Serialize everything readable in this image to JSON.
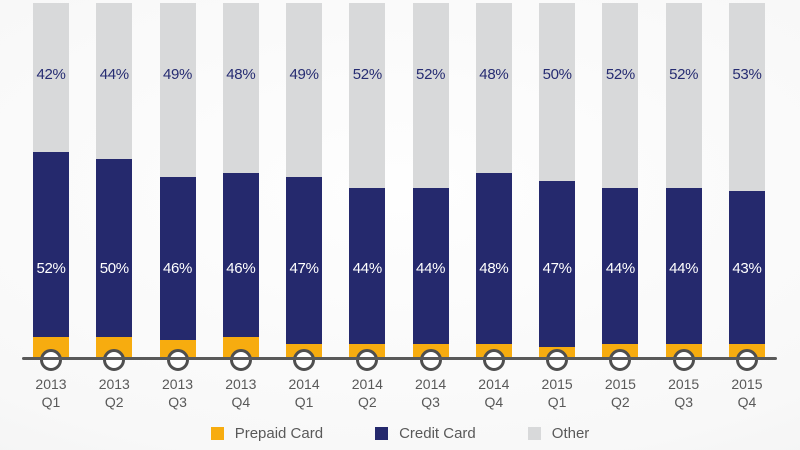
{
  "chart_data": {
    "type": "bar",
    "stacked": true,
    "orientation": "vertical",
    "unit": "%",
    "ylim": [
      0,
      100
    ],
    "grid": false,
    "legend_position": "bottom",
    "title": "",
    "categories": [
      "2013 Q1",
      "2013 Q2",
      "2013 Q3",
      "2013 Q4",
      "2014 Q1",
      "2014 Q2",
      "2014 Q3",
      "2014 Q4",
      "2015 Q1",
      "2015 Q2",
      "2015 Q3",
      "2015 Q4"
    ],
    "category_lines": [
      [
        "2013",
        "Q1"
      ],
      [
        "2013",
        "Q2"
      ],
      [
        "2013",
        "Q3"
      ],
      [
        "2013",
        "Q4"
      ],
      [
        "2014",
        "Q1"
      ],
      [
        "2014",
        "Q2"
      ],
      [
        "2014",
        "Q3"
      ],
      [
        "2014",
        "Q4"
      ],
      [
        "2015",
        "Q1"
      ],
      [
        "2015",
        "Q2"
      ],
      [
        "2015",
        "Q3"
      ],
      [
        "2015",
        "Q4"
      ]
    ],
    "series": [
      {
        "key": "prepaid",
        "name": "Prepaid Card",
        "color": "#F7AC0F",
        "values": [
          6,
          6,
          5,
          6,
          4,
          4,
          4,
          4,
          3,
          4,
          4,
          4
        ],
        "value_labels": []
      },
      {
        "key": "credit",
        "name": "Credit Card",
        "color": "#25296D",
        "values": [
          52,
          50,
          46,
          46,
          47,
          44,
          44,
          48,
          47,
          44,
          44,
          43
        ],
        "value_labels": [
          "52%",
          "50%",
          "46%",
          "46%",
          "47%",
          "44%",
          "44%",
          "48%",
          "47%",
          "44%",
          "44%",
          "43%"
        ],
        "label_color": "#FFFFFF"
      },
      {
        "key": "other",
        "name": "Other",
        "color": "#D8D9DA",
        "values": [
          42,
          44,
          49,
          48,
          49,
          52,
          52,
          48,
          50,
          52,
          52,
          53
        ],
        "value_labels": [
          "42%",
          "44%",
          "49%",
          "48%",
          "49%",
          "52%",
          "52%",
          "48%",
          "50%",
          "52%",
          "52%",
          "53%"
        ],
        "label_color": "#262C72"
      }
    ],
    "axis": {
      "baseline_color": "#595959",
      "marker_fill": "#FFFFFF",
      "marker_stroke": "#4F4F4F",
      "tick_label_color": "#595959"
    },
    "legend_text_color": "#595959"
  }
}
